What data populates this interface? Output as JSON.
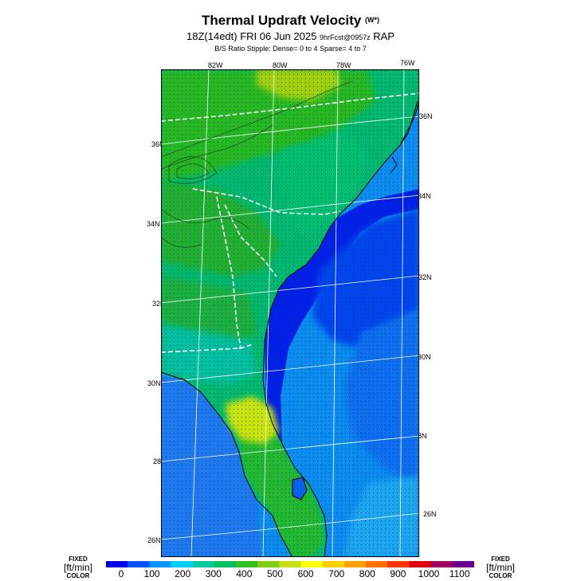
{
  "header": {
    "title": "Thermal Updraft Velocity",
    "title_units": "(W*)",
    "subtitle_main": "18Z(14edt) FRI 06 Jun 2025",
    "subtitle_small": "9hrFcst@0957z",
    "subtitle_model": "RAP",
    "stipple_note": "B/S Ratio Stipple:  Dense= 0 to 4  Sparse= 4 to 7"
  },
  "map": {
    "lon_labels": [
      "82W",
      "80W",
      "78W",
      "76W"
    ],
    "lat_labels_left": [
      "36N",
      "34N",
      "32N",
      "30N",
      "28N",
      "26N"
    ],
    "lat_labels_right": [
      "36N",
      "34N",
      "32N",
      "30N",
      "28N",
      "26N"
    ]
  },
  "legend": {
    "left_label": {
      "top": "FIXED",
      "mid": "[ft/min]",
      "bottom": "COLOR"
    },
    "right_label": {
      "top": "FIXED",
      "mid": "[ft/min]",
      "bottom": "COLOR"
    },
    "ticks": [
      "0",
      "100",
      "200",
      "300",
      "400",
      "500",
      "600",
      "700",
      "800",
      "900",
      "1000",
      "1100"
    ],
    "colors": [
      "#0000ee",
      "#0050ff",
      "#0096ff",
      "#00d0ff",
      "#00c8a0",
      "#00c060",
      "#30c020",
      "#80d010",
      "#c8e010",
      "#ffff00",
      "#ffd000",
      "#ffa000",
      "#ff7000",
      "#ff3000",
      "#e00000",
      "#a00060",
      "#6a0090"
    ]
  }
}
